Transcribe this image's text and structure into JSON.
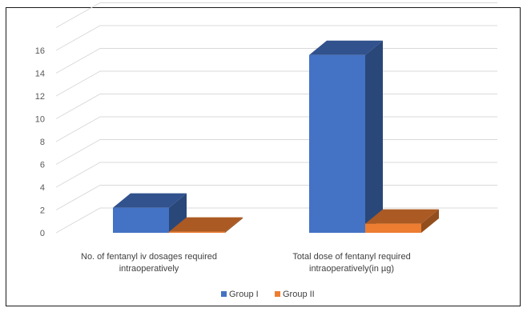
{
  "chart_data": {
    "type": "bar",
    "three_d": true,
    "categories": [
      [
        "No. of fentanyl iv dosages required",
        "intraoperatively"
      ],
      [
        "Total dose of fentanyl required",
        "intraoperatively(in µg)"
      ]
    ],
    "series": [
      {
        "name": "Group I",
        "color": "#4472C4",
        "values": [
          2.2,
          15.6
        ]
      },
      {
        "name": "Group II",
        "color": "#ED7D31",
        "values": [
          0.1,
          0.8
        ]
      }
    ],
    "y_ticks": [
      0,
      2,
      4,
      6,
      8,
      10,
      12,
      14,
      16
    ],
    "ylim": [
      0,
      16
    ],
    "grid": true,
    "legend_position": "bottom",
    "title": "",
    "xlabel": "",
    "ylabel": ""
  }
}
